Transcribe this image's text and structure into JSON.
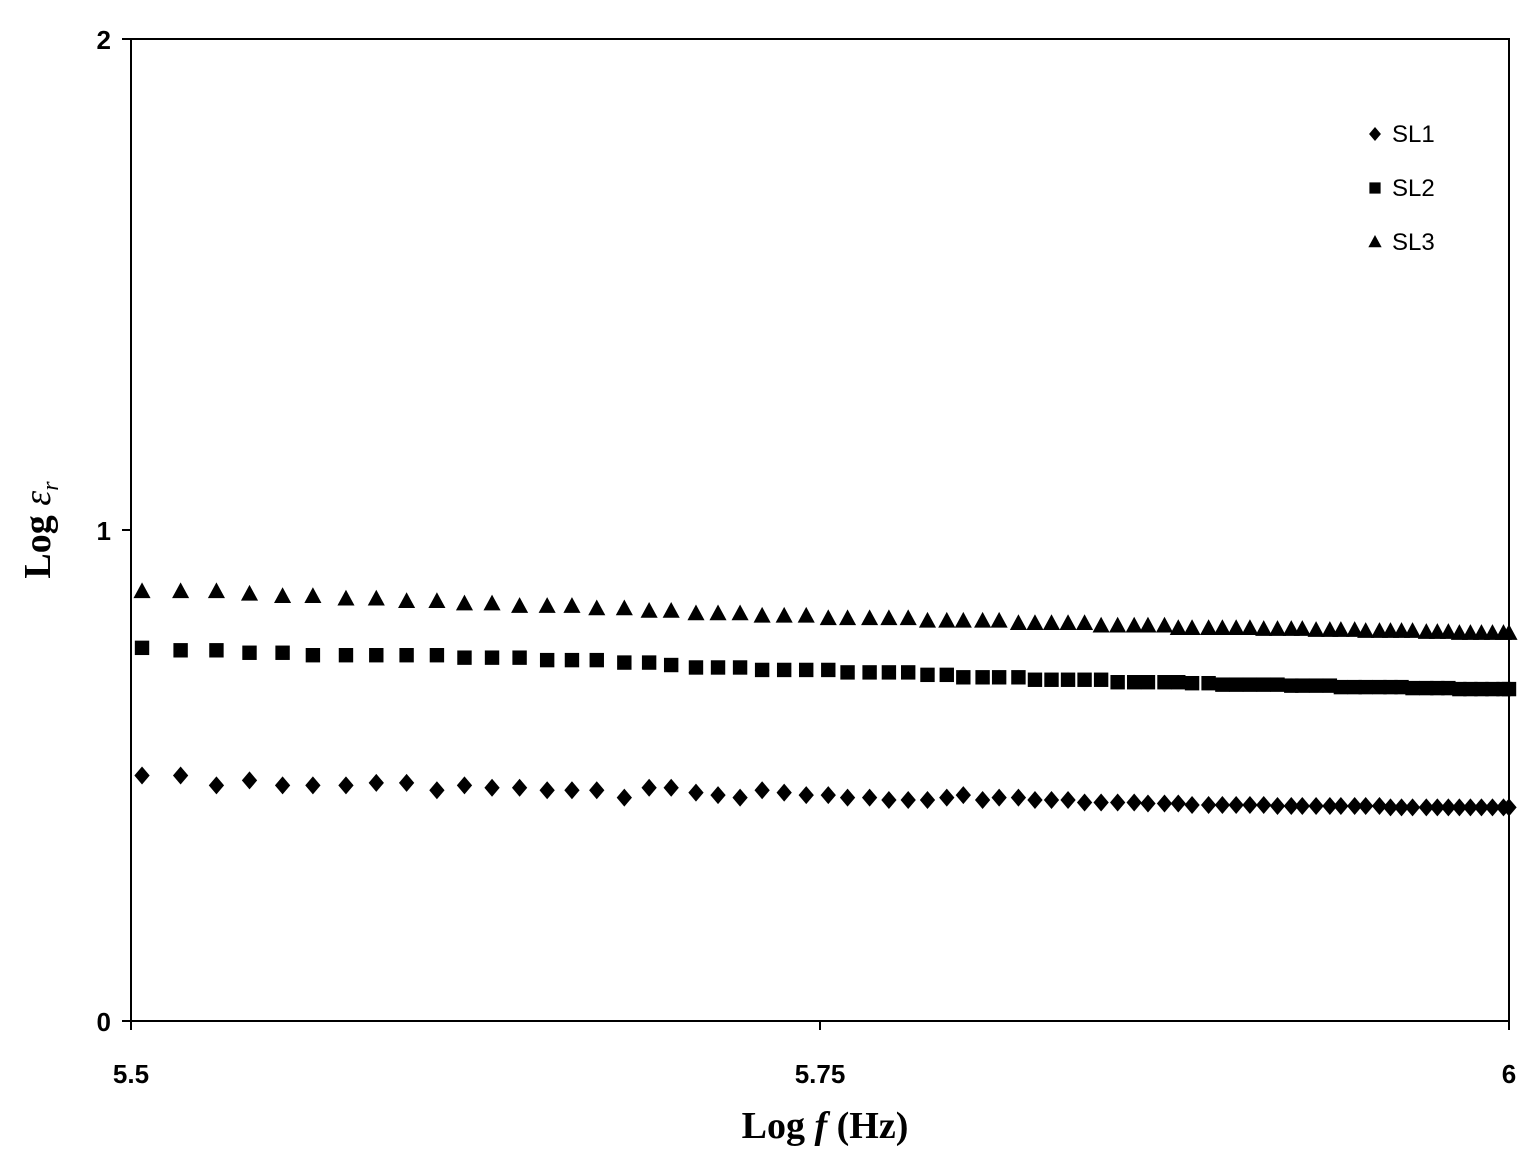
{
  "chart_data": {
    "type": "scatter",
    "title": "",
    "xlabel": "Log f (Hz)",
    "ylabel": "Log εr",
    "xlabel_parts": {
      "prefix": "Log ",
      "var": "f",
      "suffix": " (Hz)"
    },
    "ylabel_parts": {
      "prefix": "Log ",
      "var": "ε",
      "sub": "r"
    },
    "xlim": [
      5.5,
      6
    ],
    "ylim": [
      0,
      2
    ],
    "xticks": [
      {
        "value": 5.5,
        "label": "5.5"
      },
      {
        "value": 5.75,
        "label": "5.75"
      },
      {
        "value": 6,
        "label": "6"
      }
    ],
    "yticks": [
      {
        "value": 0,
        "label": "0"
      },
      {
        "value": 1,
        "label": "1"
      },
      {
        "value": 2,
        "label": "2"
      }
    ],
    "grid": false,
    "legend_position": "top-right",
    "series": [
      {
        "name": "SL1",
        "marker": "diamond",
        "x": [
          5.504,
          5.518,
          5.531,
          5.543,
          5.555,
          5.566,
          5.578,
          5.589,
          5.6,
          5.611,
          5.621,
          5.631,
          5.641,
          5.651,
          5.66,
          5.669,
          5.679,
          5.688,
          5.696,
          5.705,
          5.713,
          5.721,
          5.729,
          5.737,
          5.745,
          5.753,
          5.76,
          5.768,
          5.775,
          5.782,
          5.789,
          5.796,
          5.802,
          5.809,
          5.815,
          5.822,
          5.828,
          5.834,
          5.84,
          5.846,
          5.852,
          5.858,
          5.864,
          5.869,
          5.875,
          5.88,
          5.885,
          5.891,
          5.896,
          5.901,
          5.906,
          5.911,
          5.916,
          5.921,
          5.925,
          5.93,
          5.935,
          5.939,
          5.944,
          5.948,
          5.953,
          5.957,
          5.961,
          5.965,
          5.97,
          5.974,
          5.978,
          5.982,
          5.986,
          5.99,
          5.994,
          5.998,
          6.0
        ],
        "y": [
          0.5,
          0.5,
          0.48,
          0.49,
          0.48,
          0.48,
          0.48,
          0.485,
          0.485,
          0.47,
          0.48,
          0.475,
          0.475,
          0.47,
          0.47,
          0.47,
          0.455,
          0.475,
          0.475,
          0.465,
          0.46,
          0.455,
          0.47,
          0.465,
          0.46,
          0.46,
          0.455,
          0.455,
          0.45,
          0.45,
          0.45,
          0.455,
          0.46,
          0.45,
          0.455,
          0.455,
          0.45,
          0.45,
          0.45,
          0.445,
          0.445,
          0.445,
          0.445,
          0.443,
          0.443,
          0.443,
          0.44,
          0.44,
          0.44,
          0.44,
          0.44,
          0.44,
          0.438,
          0.438,
          0.438,
          0.438,
          0.438,
          0.438,
          0.438,
          0.438,
          0.438,
          0.435,
          0.435,
          0.435,
          0.435,
          0.435,
          0.435,
          0.435,
          0.435,
          0.435,
          0.435,
          0.435,
          0.435
        ]
      },
      {
        "name": "SL2",
        "marker": "square",
        "x": [
          5.504,
          5.518,
          5.531,
          5.543,
          5.555,
          5.566,
          5.578,
          5.589,
          5.6,
          5.611,
          5.621,
          5.631,
          5.641,
          5.651,
          5.66,
          5.669,
          5.679,
          5.688,
          5.696,
          5.705,
          5.713,
          5.721,
          5.729,
          5.737,
          5.745,
          5.753,
          5.76,
          5.768,
          5.775,
          5.782,
          5.789,
          5.796,
          5.802,
          5.809,
          5.815,
          5.822,
          5.828,
          5.834,
          5.84,
          5.846,
          5.852,
          5.858,
          5.864,
          5.869,
          5.875,
          5.88,
          5.885,
          5.891,
          5.896,
          5.901,
          5.906,
          5.911,
          5.916,
          5.921,
          5.925,
          5.93,
          5.935,
          5.939,
          5.944,
          5.948,
          5.953,
          5.957,
          5.961,
          5.965,
          5.97,
          5.974,
          5.978,
          5.982,
          5.986,
          5.99,
          5.994,
          5.998,
          6.0
        ],
        "y": [
          0.76,
          0.755,
          0.755,
          0.75,
          0.75,
          0.745,
          0.745,
          0.745,
          0.745,
          0.745,
          0.74,
          0.74,
          0.74,
          0.735,
          0.735,
          0.735,
          0.73,
          0.73,
          0.725,
          0.72,
          0.72,
          0.72,
          0.715,
          0.715,
          0.715,
          0.715,
          0.71,
          0.71,
          0.71,
          0.71,
          0.705,
          0.705,
          0.7,
          0.7,
          0.7,
          0.7,
          0.695,
          0.695,
          0.695,
          0.695,
          0.695,
          0.69,
          0.69,
          0.69,
          0.69,
          0.69,
          0.688,
          0.688,
          0.685,
          0.685,
          0.685,
          0.685,
          0.685,
          0.683,
          0.683,
          0.683,
          0.683,
          0.68,
          0.68,
          0.68,
          0.68,
          0.68,
          0.68,
          0.678,
          0.678,
          0.678,
          0.678,
          0.676,
          0.676,
          0.676,
          0.676,
          0.676,
          0.676
        ]
      },
      {
        "name": "SL3",
        "marker": "triangle",
        "x": [
          5.504,
          5.518,
          5.531,
          5.543,
          5.555,
          5.566,
          5.578,
          5.589,
          5.6,
          5.611,
          5.621,
          5.631,
          5.641,
          5.651,
          5.66,
          5.669,
          5.679,
          5.688,
          5.696,
          5.705,
          5.713,
          5.721,
          5.729,
          5.737,
          5.745,
          5.753,
          5.76,
          5.768,
          5.775,
          5.782,
          5.789,
          5.796,
          5.802,
          5.809,
          5.815,
          5.822,
          5.828,
          5.834,
          5.84,
          5.846,
          5.852,
          5.858,
          5.864,
          5.869,
          5.875,
          5.88,
          5.885,
          5.891,
          5.896,
          5.901,
          5.906,
          5.911,
          5.916,
          5.921,
          5.925,
          5.93,
          5.935,
          5.939,
          5.944,
          5.948,
          5.953,
          5.957,
          5.961,
          5.965,
          5.97,
          5.974,
          5.978,
          5.982,
          5.986,
          5.99,
          5.994,
          5.998,
          6.0
        ],
        "y": [
          0.875,
          0.875,
          0.875,
          0.87,
          0.865,
          0.865,
          0.86,
          0.86,
          0.855,
          0.855,
          0.85,
          0.85,
          0.845,
          0.845,
          0.845,
          0.84,
          0.84,
          0.835,
          0.835,
          0.83,
          0.83,
          0.83,
          0.825,
          0.825,
          0.825,
          0.82,
          0.82,
          0.82,
          0.82,
          0.82,
          0.815,
          0.815,
          0.815,
          0.815,
          0.815,
          0.81,
          0.81,
          0.81,
          0.81,
          0.81,
          0.805,
          0.805,
          0.805,
          0.805,
          0.805,
          0.8,
          0.8,
          0.8,
          0.8,
          0.8,
          0.8,
          0.798,
          0.798,
          0.798,
          0.798,
          0.796,
          0.796,
          0.796,
          0.796,
          0.794,
          0.794,
          0.794,
          0.794,
          0.794,
          0.792,
          0.792,
          0.792,
          0.79,
          0.79,
          0.79,
          0.79,
          0.79,
          0.79
        ]
      }
    ]
  }
}
